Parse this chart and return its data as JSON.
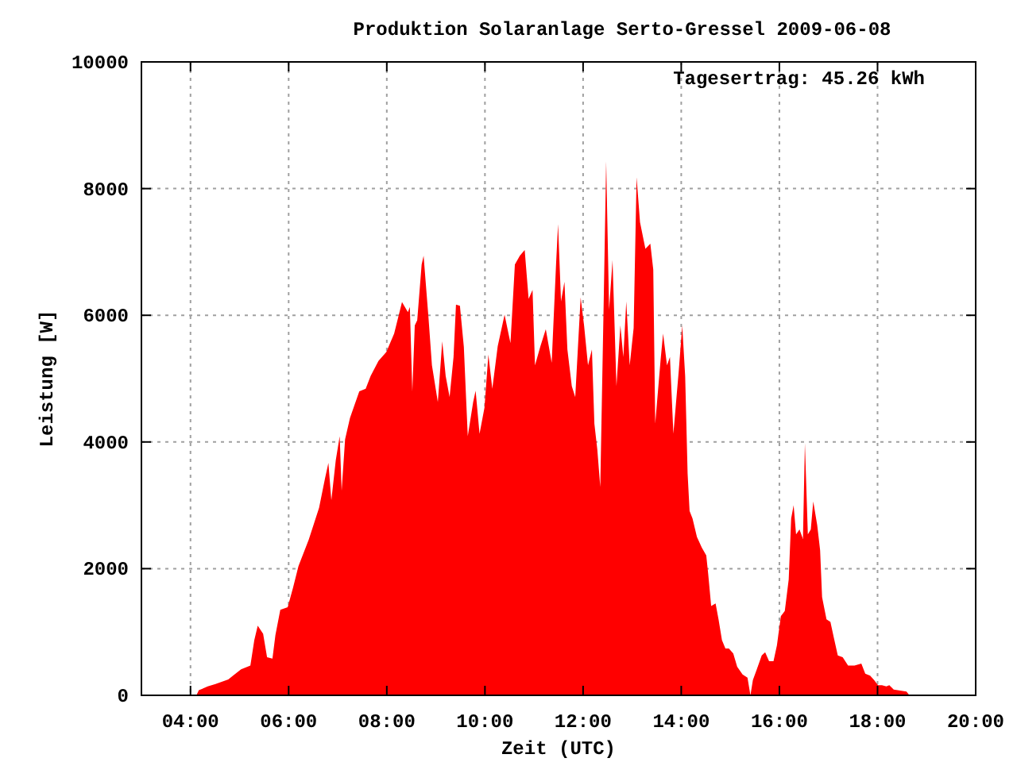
{
  "chart_data": {
    "type": "area",
    "title": "Produktion Solaranlage Serto-Gressel 2009-06-08",
    "xlabel": "Zeit (UTC)",
    "ylabel": "Leistung [W]",
    "annotations": [
      "Tagesertrag: 45.26 kWh"
    ],
    "xlim": [
      3,
      20
    ],
    "ylim": [
      0,
      10000
    ],
    "xticks": [
      {
        "value": 4,
        "label": "04:00"
      },
      {
        "value": 6,
        "label": "06:00"
      },
      {
        "value": 8,
        "label": "08:00"
      },
      {
        "value": 10,
        "label": "10:00"
      },
      {
        "value": 12,
        "label": "12:00"
      },
      {
        "value": 14,
        "label": "14:00"
      },
      {
        "value": 16,
        "label": "16:00"
      },
      {
        "value": 18,
        "label": "18:00"
      },
      {
        "value": 20,
        "label": "20:00"
      }
    ],
    "yticks": [
      0,
      2000,
      4000,
      6000,
      8000,
      10000
    ],
    "grid": true,
    "series": [
      {
        "color": "#ff0000",
        "x": [
          4.12,
          4.17,
          4.35,
          4.51,
          4.77,
          4.85,
          5.03,
          5.22,
          5.3,
          5.37,
          5.48,
          5.56,
          5.67,
          5.73,
          5.83,
          5.98,
          6.09,
          6.2,
          6.41,
          6.62,
          6.74,
          6.81,
          6.87,
          6.96,
          7.04,
          7.08,
          7.15,
          7.25,
          7.44,
          7.57,
          7.67,
          7.83,
          7.99,
          8.15,
          8.31,
          8.43,
          8.47,
          8.52,
          8.57,
          8.62,
          8.71,
          8.75,
          8.85,
          8.92,
          9.04,
          9.13,
          9.2,
          9.28,
          9.36,
          9.41,
          9.49,
          9.57,
          9.65,
          9.76,
          9.81,
          9.89,
          9.99,
          10.07,
          10.15,
          10.26,
          10.4,
          10.52,
          10.61,
          10.71,
          10.81,
          10.89,
          10.97,
          11.02,
          11.13,
          11.24,
          11.36,
          11.45,
          11.49,
          11.55,
          11.62,
          11.68,
          11.77,
          11.84,
          11.95,
          12.02,
          12.1,
          12.18,
          12.23,
          12.29,
          12.35,
          12.42,
          12.47,
          12.53,
          12.6,
          12.68,
          12.76,
          12.82,
          12.88,
          12.95,
          13.03,
          13.09,
          13.16,
          13.27,
          13.37,
          13.43,
          13.47,
          13.58,
          13.63,
          13.71,
          13.77,
          13.84,
          13.95,
          14.02,
          14.08,
          14.13,
          14.17,
          14.23,
          14.32,
          14.42,
          14.51,
          14.55,
          14.61,
          14.7,
          14.76,
          14.83,
          14.9,
          14.97,
          15.06,
          15.14,
          15.25,
          15.35,
          15.41,
          15.46,
          15.54,
          15.64,
          15.71,
          15.79,
          15.88,
          15.95,
          16.03,
          16.11,
          16.19,
          16.24,
          16.29,
          16.34,
          16.41,
          16.48,
          16.52,
          16.58,
          16.64,
          16.69,
          16.77,
          16.83,
          16.87,
          16.96,
          17.04,
          17.11,
          17.19,
          17.29,
          17.4,
          17.53,
          17.67,
          17.75,
          17.85,
          17.93,
          18.01,
          18.09,
          18.18,
          18.24,
          18.33,
          18.59,
          18.65
        ],
        "values": [
          0,
          80,
          140,
          180,
          250,
          300,
          410,
          470,
          870,
          1100,
          970,
          600,
          580,
          950,
          1350,
          1390,
          1700,
          2040,
          2460,
          2960,
          3420,
          3670,
          3080,
          3710,
          4090,
          3230,
          4040,
          4380,
          4800,
          4840,
          5040,
          5280,
          5420,
          5710,
          6210,
          6050,
          6130,
          4800,
          5840,
          5920,
          6800,
          6940,
          5960,
          5210,
          4630,
          5590,
          5040,
          4710,
          5340,
          6170,
          6150,
          5500,
          4090,
          4630,
          4810,
          4130,
          4540,
          5380,
          4840,
          5510,
          6010,
          5560,
          6800,
          6940,
          7030,
          6260,
          6400,
          5210,
          5510,
          5780,
          5250,
          6820,
          7440,
          6220,
          6530,
          5460,
          4880,
          4710,
          6280,
          5840,
          5210,
          5460,
          4290,
          3880,
          3290,
          6220,
          8430,
          6090,
          6870,
          4880,
          5840,
          5340,
          6220,
          5210,
          5800,
          8180,
          7470,
          7050,
          7130,
          6720,
          4290,
          5300,
          5710,
          5210,
          5340,
          4130,
          5130,
          5840,
          5040,
          3500,
          2910,
          2790,
          2500,
          2330,
          2210,
          1910,
          1410,
          1450,
          1200,
          870,
          740,
          740,
          660,
          450,
          330,
          280,
          0,
          240,
          410,
          630,
          680,
          540,
          540,
          790,
          1250,
          1330,
          1830,
          2790,
          3000,
          2540,
          2620,
          2470,
          3980,
          2540,
          2620,
          3060,
          2690,
          2290,
          1550,
          1200,
          1160,
          910,
          630,
          600,
          470,
          470,
          500,
          340,
          310,
          240,
          160,
          160,
          140,
          160,
          90,
          60,
          0
        ]
      }
    ]
  }
}
